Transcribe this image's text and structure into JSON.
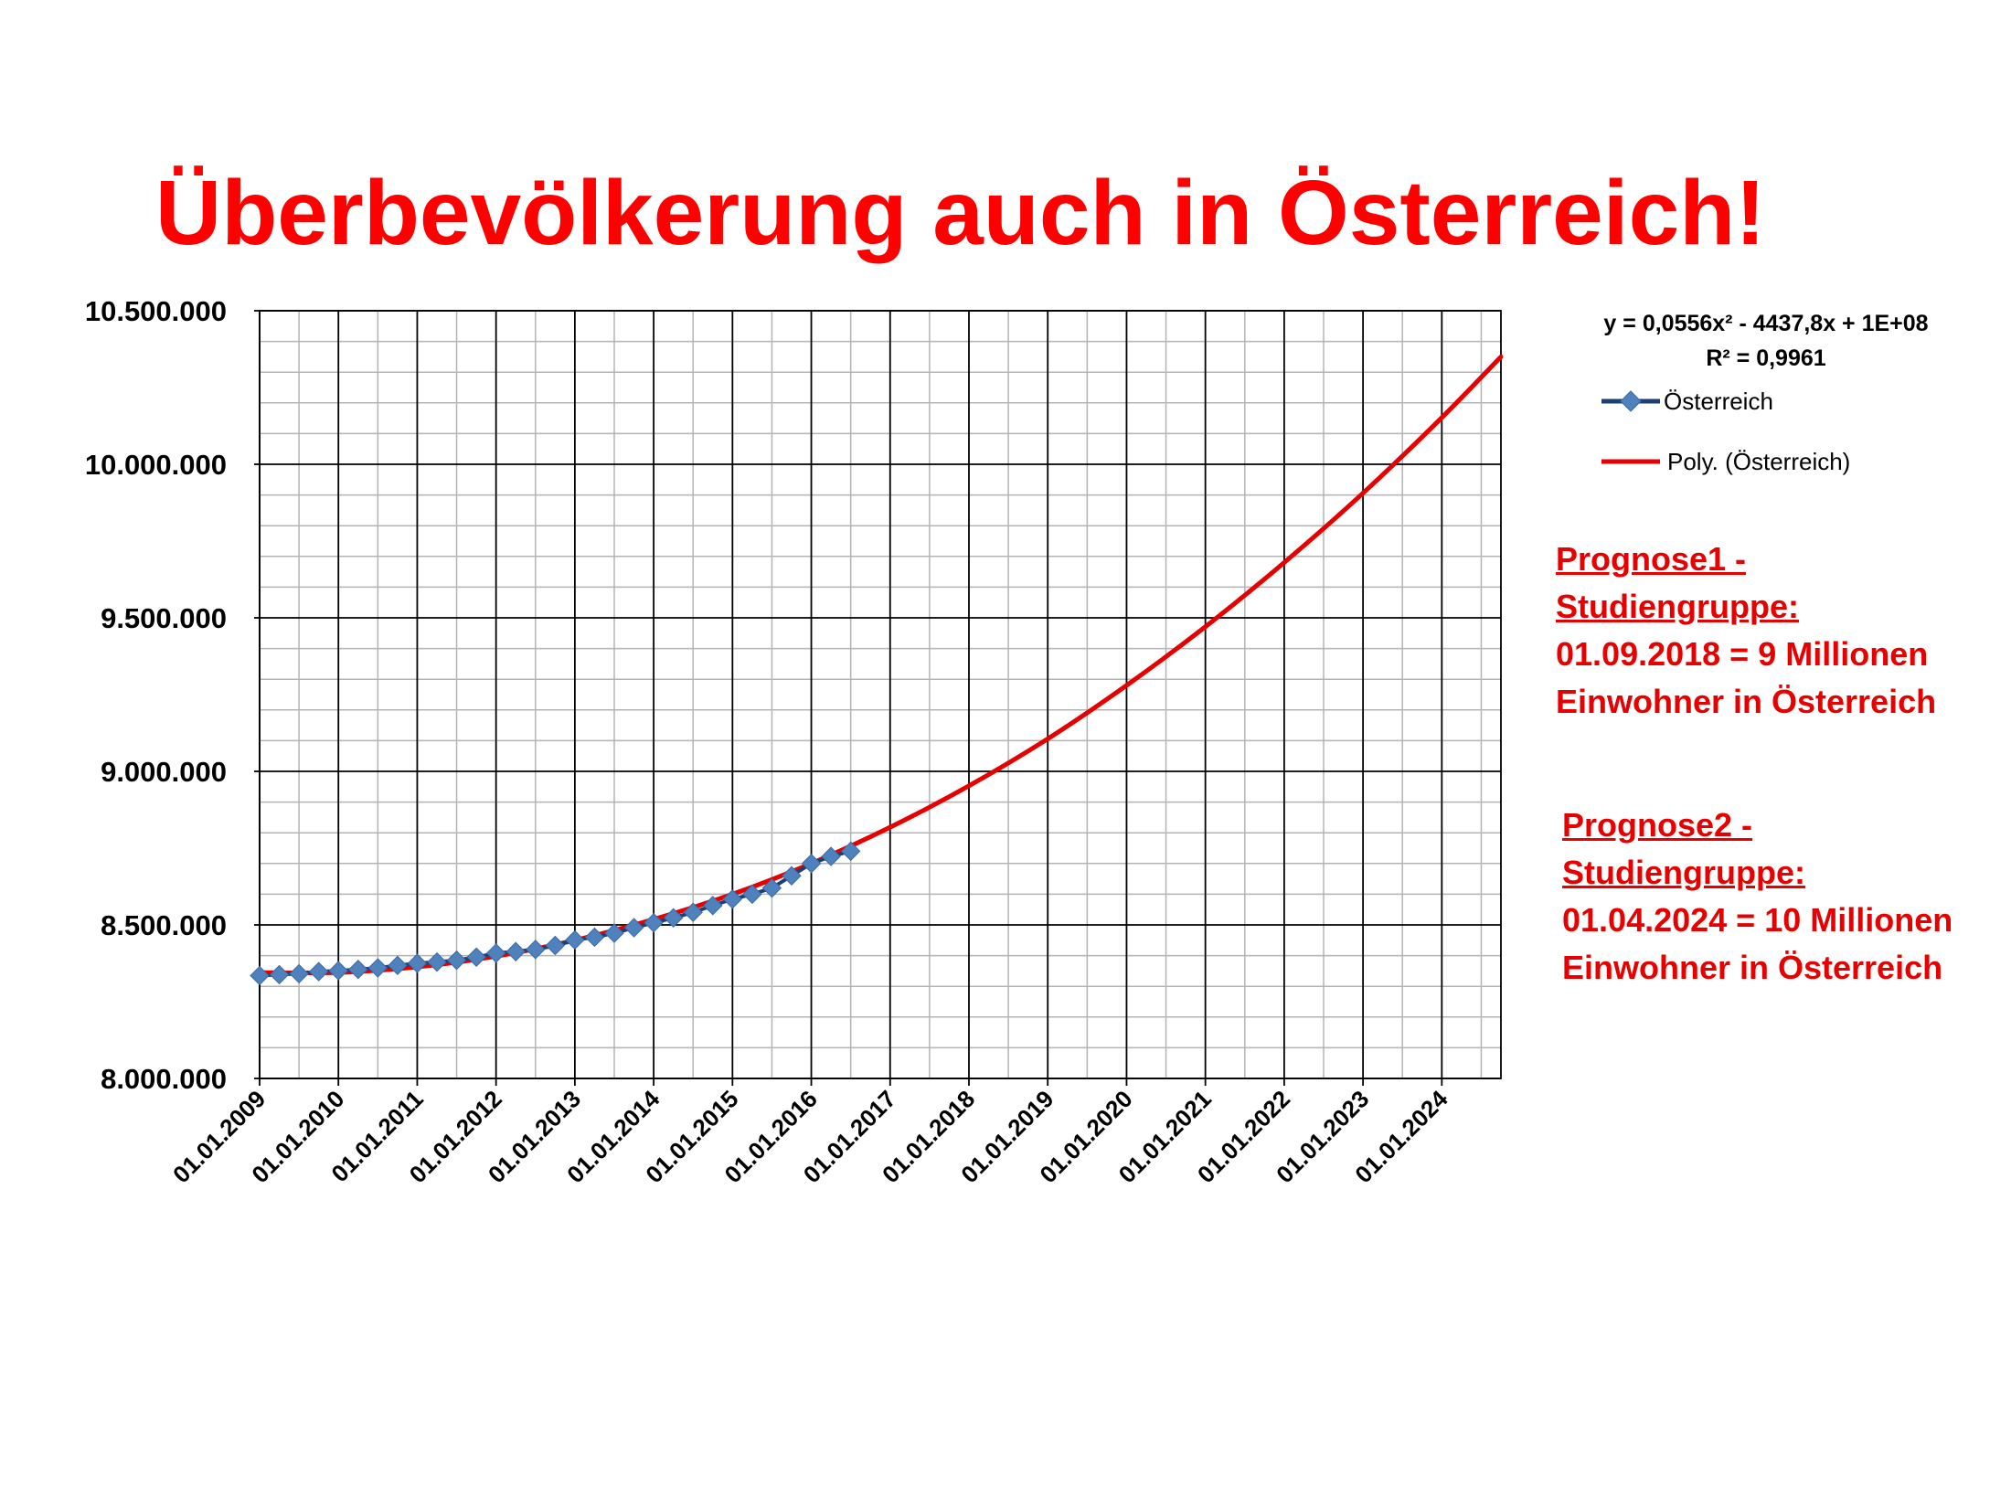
{
  "title": "Überbevölkerung auch in Österreich!",
  "colors": {
    "title": "#ff0000",
    "series": "#4f81bd",
    "series_line": "#1f3f73",
    "trend": "#e60000",
    "major_grid": "#000000",
    "minor_grid": "#b3b3b3"
  },
  "trend_equation": {
    "line1": "y = 0,0556x² - 4437,8x + 1E+08",
    "line2": "R² = 0,9961"
  },
  "legend": {
    "series_label": "Österreich",
    "trend_label": "Poly. (Österreich)"
  },
  "notes": [
    {
      "lines": [
        "Prognose1 -",
        "Studiengruppe:",
        "01.09.2018 = 9 Millionen",
        "Einwohner in Österreich"
      ]
    },
    {
      "lines": [
        "Prognose2 -",
        "Studiengruppe:",
        "01.04.2024 = 10 Millionen",
        "Einwohner in Österreich"
      ]
    }
  ],
  "chart_data": {
    "type": "line",
    "title": "Überbevölkerung auch in Österreich!",
    "xlabel": "",
    "ylabel": "",
    "x_axis": "date",
    "xlim": [
      "2009-01-01",
      "2024-10-01"
    ],
    "ylim": [
      8000000,
      10500000
    ],
    "y_major_step": 500000,
    "y_minor_step": 100000,
    "grid": true,
    "legend_position": "top-right",
    "x_tick_labels": [
      "01.01.2009",
      "01.01.2010",
      "01.01.2011",
      "01.01.2012",
      "01.01.2013",
      "01.01.2014",
      "01.01.2015",
      "01.01.2016",
      "01.01.2017",
      "01.01.2018",
      "01.01.2019",
      "01.01.2020",
      "01.01.2021",
      "01.01.2022",
      "01.01.2023",
      "01.01.2024"
    ],
    "y_tick_labels": [
      "8.000.000",
      "8.500.000",
      "9.000.000",
      "9.500.000",
      "10.000.000",
      "10.500.000"
    ],
    "series": [
      {
        "name": "Österreich",
        "type": "line-markers",
        "x": [
          "2009-01-01",
          "2009-04-01",
          "2009-07-01",
          "2009-10-01",
          "2010-01-01",
          "2010-04-01",
          "2010-07-01",
          "2010-10-01",
          "2011-01-01",
          "2011-04-01",
          "2011-07-01",
          "2011-10-01",
          "2012-01-01",
          "2012-04-01",
          "2012-07-01",
          "2012-10-01",
          "2013-01-01",
          "2013-04-01",
          "2013-07-01",
          "2013-10-01",
          "2014-01-01",
          "2014-04-01",
          "2014-07-01",
          "2014-10-01",
          "2015-01-01",
          "2015-04-01",
          "2015-07-01",
          "2015-10-01",
          "2016-01-01",
          "2016-04-01",
          "2016-07-01"
        ],
        "y": [
          8335000,
          8338000,
          8341000,
          8348000,
          8351000,
          8355000,
          8360000,
          8368000,
          8375000,
          8379000,
          8385000,
          8395000,
          8408000,
          8413000,
          8420000,
          8433000,
          8451000,
          8460000,
          8473000,
          8491000,
          8507000,
          8523000,
          8541000,
          8563000,
          8584000,
          8600000,
          8620000,
          8660000,
          8700000,
          8723000,
          8740000
        ]
      },
      {
        "name": "Poly. (Österreich)",
        "type": "polynomial-trend",
        "x": [
          "2009-01-01",
          "2010-01-01",
          "2011-01-01",
          "2012-01-01",
          "2013-01-01",
          "2014-01-01",
          "2015-01-01",
          "2016-01-01",
          "2017-01-01",
          "2018-01-01",
          "2019-01-01",
          "2020-01-01",
          "2021-01-01",
          "2022-01-01",
          "2023-01-01",
          "2024-01-01",
          "2024-10-01"
        ],
        "y": [
          8345000,
          8345000,
          8363000,
          8398000,
          8450000,
          8518000,
          8600000,
          8700000,
          8818000,
          8953000,
          9106000,
          9280000,
          9471000,
          9680000,
          9906000,
          10152000,
          10350000
        ]
      }
    ]
  }
}
